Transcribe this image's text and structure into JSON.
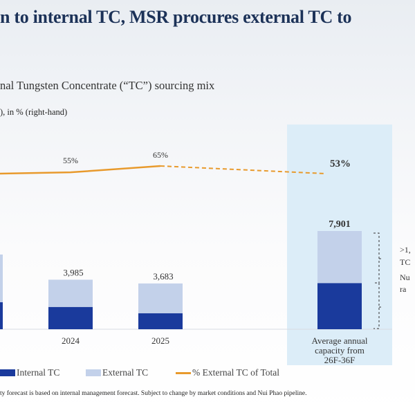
{
  "title": "n to internal TC, MSR procures external TC to",
  "subtitle": "nal Tungsten Concentrate (“TC”) sourcing mix",
  "unit_note": "), in % (right-hand)",
  "footnote": "ty forecast is based on internal management forecast. Subject to change by market conditions and Nui Phao pipeline.",
  "side_notes": [
    ">1,",
    "TC",
    "Nu",
    "ra"
  ],
  "colors": {
    "internal": "#1a3a9c",
    "external": "#c3d1ea",
    "line": "#e89a2c",
    "highlight": "#dcedf8"
  },
  "chart_data": {
    "type": "bar",
    "stacked": true,
    "categories": [
      "",
      "2024",
      "2025",
      "Average annual capacity from 26F-36F"
    ],
    "category_lines": [
      [
        ""
      ],
      [
        "2024"
      ],
      [
        "2025"
      ],
      [
        "Average annual",
        "capacity from",
        "26F-36F"
      ]
    ],
    "totals": [
      null,
      3985,
      3683,
      7901
    ],
    "total_labels": [
      "",
      "3,985",
      "3,683",
      "7,901"
    ],
    "series": [
      {
        "name": "Internal TC",
        "values": [
          null,
          1793,
          1289,
          3713
        ]
      },
      {
        "name": "External TC",
        "values": [
          null,
          2192,
          2394,
          4188
        ]
      }
    ],
    "line_series": {
      "name": "% External TC of Total",
      "values": [
        null,
        55,
        65,
        53
      ],
      "labels": [
        "",
        "55%",
        "65%",
        "53%"
      ],
      "axis": "right",
      "dashed_from_index": 2
    },
    "legend": [
      "Internal TC",
      "External TC",
      "% External TC of Total"
    ],
    "legend_placement": "bottom",
    "grid": false
  }
}
